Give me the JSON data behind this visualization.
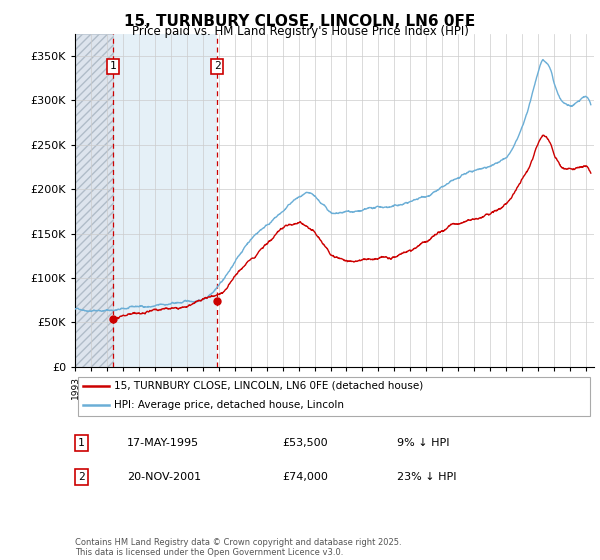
{
  "title": "15, TURNBURY CLOSE, LINCOLN, LN6 0FE",
  "subtitle": "Price paid vs. HM Land Registry's House Price Index (HPI)",
  "ylim": [
    0,
    375000
  ],
  "yticks": [
    0,
    50000,
    100000,
    150000,
    200000,
    250000,
    300000,
    350000
  ],
  "ytick_labels": [
    "£0",
    "£50K",
    "£100K",
    "£150K",
    "£200K",
    "£250K",
    "£300K",
    "£350K"
  ],
  "xlim_start": 1993,
  "xlim_end": 2025.5,
  "sale1": {
    "date_num": 1995.37,
    "price": 53500,
    "label": "1",
    "date_str": "17-MAY-1995",
    "pct": "9% ↓ HPI"
  },
  "sale2": {
    "date_num": 2001.9,
    "price": 74000,
    "label": "2",
    "date_str": "20-NOV-2001",
    "pct": "23% ↓ HPI"
  },
  "hpi_color": "#6baed6",
  "price_color": "#cc0000",
  "grid_color": "#cccccc",
  "legend_label_price": "15, TURNBURY CLOSE, LINCOLN, LN6 0FE (detached house)",
  "legend_label_hpi": "HPI: Average price, detached house, Lincoln",
  "footer": "Contains HM Land Registry data © Crown copyright and database right 2025.\nThis data is licensed under the Open Government Licence v3.0."
}
